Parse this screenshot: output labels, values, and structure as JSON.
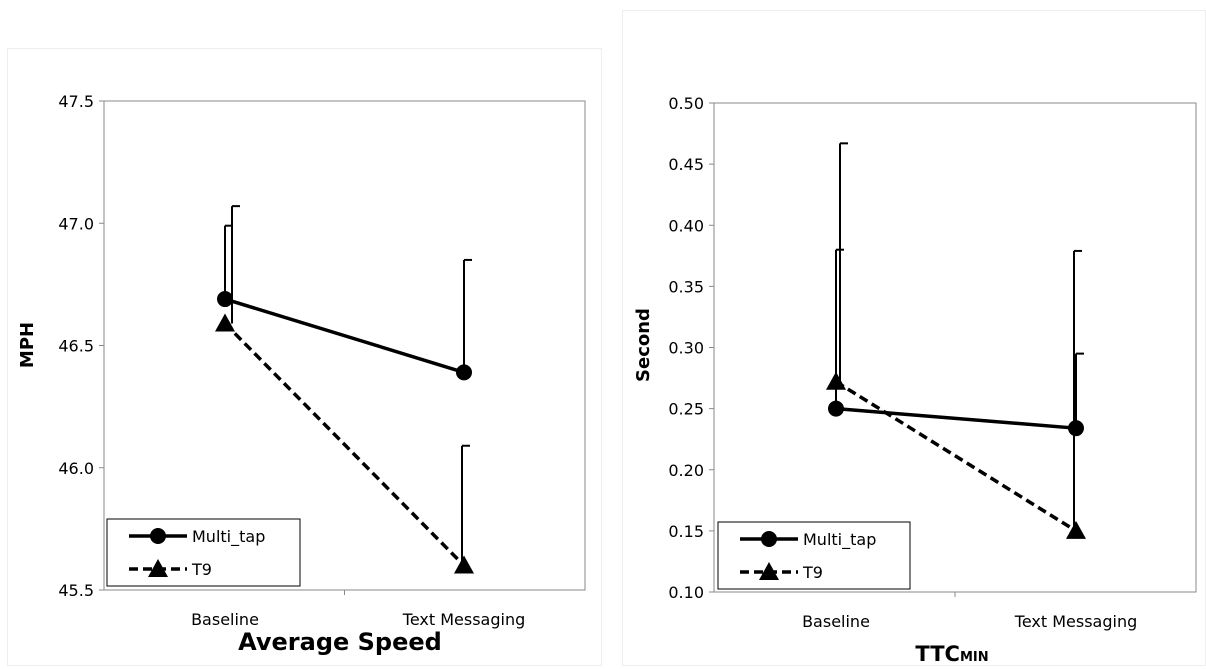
{
  "chart_data": [
    {
      "type": "line",
      "title": "Average Speed",
      "title_sub": "",
      "ylabel": "MPH",
      "xlabel": "",
      "categories": [
        "Baseline",
        "Text Messaging"
      ],
      "ylim": [
        45.5,
        47.5
      ],
      "yticks": [
        "45.5",
        "46.0",
        "46.5",
        "47.0",
        "47.5"
      ],
      "grid": false,
      "legend_position": "bottom-left",
      "series": [
        {
          "name": "Multi_tap",
          "values": [
            46.69,
            46.39
          ],
          "error_upper": [
            46.99,
            46.85
          ],
          "marker": "circle",
          "line_style": "solid",
          "color": "#000000"
        },
        {
          "name": "T9",
          "values": [
            46.59,
            45.6
          ],
          "error_upper": [
            47.07,
            46.09
          ],
          "marker": "triangle",
          "line_style": "dashed",
          "color": "#000000"
        }
      ]
    },
    {
      "type": "line",
      "title": "TTC",
      "title_sub": "MIN",
      "ylabel": "Second",
      "xlabel": "",
      "categories": [
        "Baseline",
        "Text Messaging"
      ],
      "ylim": [
        0.1,
        0.5
      ],
      "yticks": [
        "0.10",
        "0.15",
        "0.20",
        "0.25",
        "0.30",
        "0.35",
        "0.40",
        "0.45",
        "0.50"
      ],
      "grid": false,
      "legend_position": "bottom-left",
      "series": [
        {
          "name": "Multi_tap",
          "values": [
            0.25,
            0.234
          ],
          "error_upper": [
            0.38,
            0.295
          ],
          "marker": "circle",
          "line_style": "solid",
          "color": "#000000"
        },
        {
          "name": "T9",
          "values": [
            0.272,
            0.15
          ],
          "error_upper": [
            0.467,
            0.379
          ],
          "marker": "triangle",
          "line_style": "dashed",
          "color": "#000000"
        }
      ]
    }
  ]
}
